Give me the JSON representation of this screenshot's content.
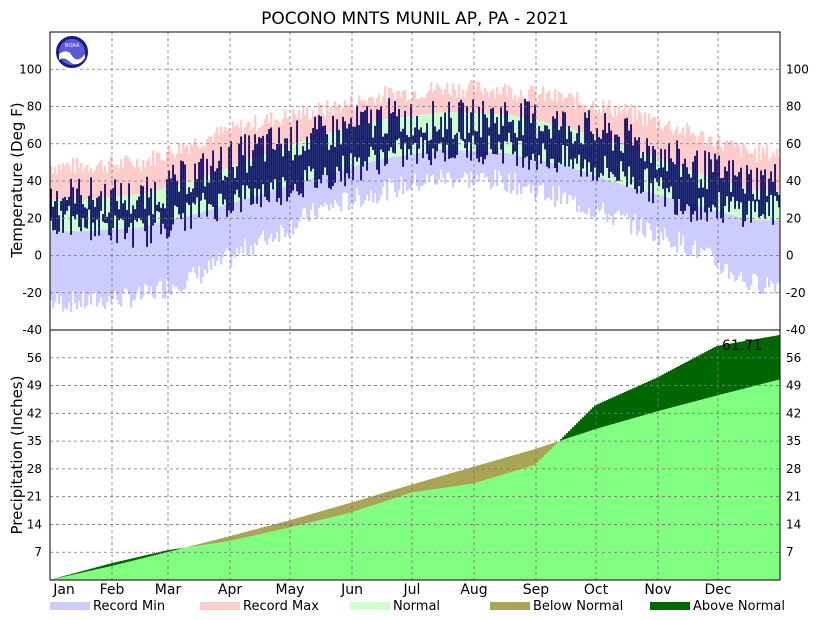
{
  "chart_data": {
    "title": "POCONO MNTS MUNIL AP, PA - 2021",
    "months": [
      "Jan",
      "Feb",
      "Mar",
      "Apr",
      "May",
      "Jun",
      "Jul",
      "Aug",
      "Sep",
      "Oct",
      "Nov",
      "Dec"
    ],
    "temperature_panel": {
      "type": "area",
      "ylabel": "Temperature (Deg F)",
      "ylim": [
        -40,
        120
      ],
      "yticks": [
        -40,
        -20,
        0,
        20,
        40,
        60,
        80,
        100
      ],
      "grid": true,
      "record_max_monthly": [
        48,
        50,
        62,
        72,
        78,
        86,
        90,
        89,
        84,
        77,
        66,
        55
      ],
      "record_min_monthly": [
        -25,
        -22,
        -10,
        8,
        25,
        35,
        42,
        40,
        30,
        18,
        5,
        -15
      ],
      "normal_high_monthly": [
        30,
        33,
        41,
        54,
        65,
        73,
        77,
        76,
        69,
        58,
        46,
        35
      ],
      "normal_low_monthly": [
        13,
        15,
        23,
        33,
        43,
        52,
        57,
        55,
        48,
        37,
        28,
        19
      ],
      "observed_high_monthly": [
        32,
        30,
        45,
        58,
        65,
        74,
        72,
        75,
        70,
        63,
        48,
        40
      ],
      "observed_low_monthly": [
        18,
        12,
        25,
        33,
        42,
        53,
        58,
        58,
        50,
        43,
        27,
        24
      ]
    },
    "precip_panel": {
      "type": "area",
      "ylabel": "Precipitation (Inches)",
      "ylim": [
        0,
        63
      ],
      "yticks": [
        7,
        14,
        21,
        28,
        35,
        42,
        49,
        56
      ],
      "grid": true,
      "total_label": "61.71",
      "normal_cumulative_monthly_end": [
        3.5,
        7,
        11,
        15,
        19.5,
        24,
        28.5,
        33,
        38,
        42.5,
        46.5,
        50.5
      ],
      "observed_cumulative_monthly_end": [
        4.2,
        7.5,
        9.8,
        13.2,
        17.0,
        22.0,
        24.3,
        29.0,
        44.0,
        51.0,
        59.0,
        61.71
      ]
    },
    "legend": [
      {
        "label": "Record Min",
        "color": "#ccccff"
      },
      {
        "label": "Record Max",
        "color": "#ffcccc"
      },
      {
        "label": "Normal",
        "color": "#ccffcc"
      },
      {
        "label": "Below Normal",
        "color": "#aaa555"
      },
      {
        "label": "Above Normal",
        "color": "#006600"
      }
    ],
    "colors": {
      "observed_temp": "#000066",
      "normal_precip": "#80ff80",
      "below_normal": "#aaa555",
      "above_normal": "#006600"
    },
    "logo_text": "NOAA"
  }
}
